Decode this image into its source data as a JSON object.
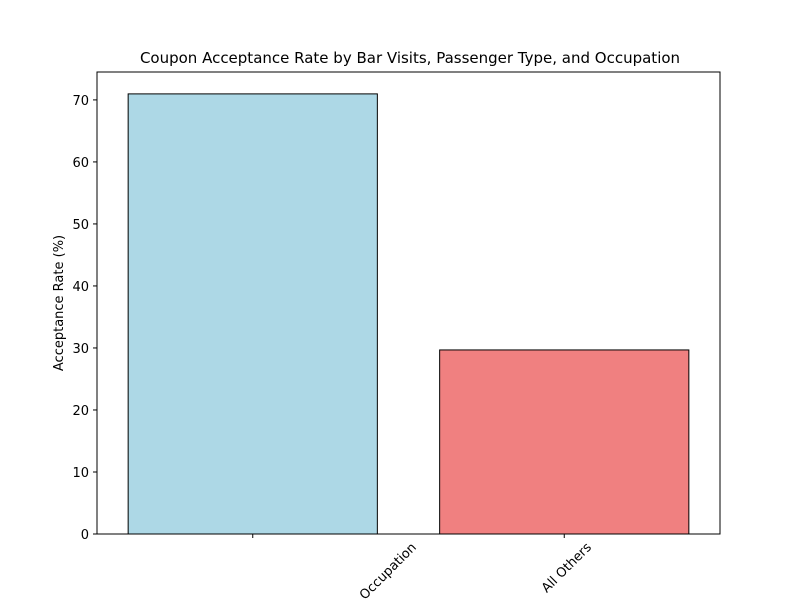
{
  "chart_data": {
    "type": "bar",
    "title": "Coupon Acceptance Rate by Bar Visits, Passenger Type, and Occupation",
    "y_label": "Acceptance Rate (%)",
    "categories": [
      "Occupation",
      "All Others"
    ],
    "values": [
      70.97,
      29.68
    ],
    "colors": [
      "#add8e6",
      "#f08080"
    ],
    "edge_color": "#000000",
    "ylim": [
      0,
      74.5
    ],
    "yticks": [
      0,
      10,
      20,
      30,
      40,
      50,
      60,
      70
    ],
    "grid": false
  }
}
